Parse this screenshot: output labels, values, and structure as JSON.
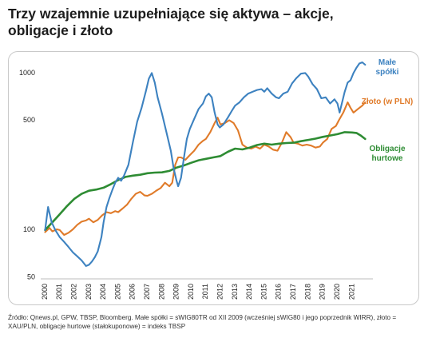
{
  "title_line1": "Trzy wzajemnie uzupełniające się aktywa – akcje,",
  "title_line2": "obligacje i złoto",
  "source": "Źródło: Qnews.pl, GPW, TBSP, Bloomberg. Małe spółki = sWIG80TR od XII 2009 (wcześniej sWIG80 i jego poprzednik WIRR), złoto = XAU/PLN, obligacje hurtowe (stałokuponowe) = indeks TBSP",
  "chart_data": {
    "type": "line",
    "y_scale": "log",
    "ylim": [
      50,
      1300
    ],
    "xlim": [
      1999.7,
      2022.1
    ],
    "y_ticks": [
      {
        "value": 50,
        "label": "50"
      },
      {
        "value": 100,
        "label": "100"
      },
      {
        "value": 500,
        "label": "500"
      },
      {
        "value": 1000,
        "label": "1000"
      }
    ],
    "x_ticks": [
      "2000",
      "2001",
      "2002",
      "2003",
      "2004",
      "2005",
      "2006",
      "2007",
      "2008",
      "2009",
      "2010",
      "2011",
      "2012",
      "2013",
      "2014",
      "2015",
      "2016",
      "2017",
      "2018",
      "2019",
      "2020",
      "2021"
    ],
    "grid": false,
    "series": [
      {
        "name": "Małe spółki",
        "label_line1": "Małe",
        "label_line2": "spółki",
        "color": "#3d82c0",
        "points": [
          [
            2000.0,
            100
          ],
          [
            2000.2,
            140
          ],
          [
            2000.45,
            112
          ],
          [
            2000.7,
            100
          ],
          [
            2001.0,
            90
          ],
          [
            2001.3,
            84
          ],
          [
            2001.6,
            78
          ],
          [
            2001.9,
            72
          ],
          [
            2002.2,
            68
          ],
          [
            2002.5,
            64
          ],
          [
            2002.8,
            59
          ],
          [
            2003.0,
            60
          ],
          [
            2003.2,
            63
          ],
          [
            2003.4,
            67
          ],
          [
            2003.6,
            73
          ],
          [
            2003.85,
            90
          ],
          [
            2004.0,
            112
          ],
          [
            2004.2,
            140
          ],
          [
            2004.4,
            160
          ],
          [
            2004.6,
            180
          ],
          [
            2004.8,
            200
          ],
          [
            2005.0,
            215
          ],
          [
            2005.2,
            206
          ],
          [
            2005.4,
            222
          ],
          [
            2005.7,
            260
          ],
          [
            2006.0,
            360
          ],
          [
            2006.3,
            490
          ],
          [
            2006.6,
            600
          ],
          [
            2006.9,
            770
          ],
          [
            2007.1,
            920
          ],
          [
            2007.3,
            1000
          ],
          [
            2007.5,
            870
          ],
          [
            2007.7,
            700
          ],
          [
            2008.0,
            550
          ],
          [
            2008.3,
            420
          ],
          [
            2008.6,
            320
          ],
          [
            2008.8,
            245
          ],
          [
            2009.0,
            205
          ],
          [
            2009.1,
            190
          ],
          [
            2009.3,
            215
          ],
          [
            2009.5,
            290
          ],
          [
            2009.7,
            380
          ],
          [
            2009.9,
            440
          ],
          [
            2010.2,
            510
          ],
          [
            2010.5,
            590
          ],
          [
            2010.8,
            640
          ],
          [
            2011.0,
            710
          ],
          [
            2011.2,
            740
          ],
          [
            2011.4,
            700
          ],
          [
            2011.6,
            560
          ],
          [
            2011.8,
            470
          ],
          [
            2011.95,
            450
          ],
          [
            2012.2,
            470
          ],
          [
            2012.5,
            520
          ],
          [
            2012.8,
            580
          ],
          [
            2013.0,
            620
          ],
          [
            2013.3,
            650
          ],
          [
            2013.6,
            700
          ],
          [
            2013.9,
            740
          ],
          [
            2014.2,
            760
          ],
          [
            2014.5,
            780
          ],
          [
            2014.8,
            790
          ],
          [
            2015.0,
            760
          ],
          [
            2015.2,
            800
          ],
          [
            2015.5,
            740
          ],
          [
            2015.8,
            700
          ],
          [
            2016.0,
            690
          ],
          [
            2016.3,
            740
          ],
          [
            2016.6,
            760
          ],
          [
            2016.9,
            860
          ],
          [
            2017.2,
            930
          ],
          [
            2017.5,
            990
          ],
          [
            2017.8,
            1000
          ],
          [
            2018.0,
            950
          ],
          [
            2018.3,
            850
          ],
          [
            2018.6,
            790
          ],
          [
            2018.9,
            690
          ],
          [
            2019.2,
            700
          ],
          [
            2019.5,
            640
          ],
          [
            2019.8,
            680
          ],
          [
            2020.0,
            640
          ],
          [
            2020.15,
            560
          ],
          [
            2020.3,
            640
          ],
          [
            2020.5,
            760
          ],
          [
            2020.7,
            870
          ],
          [
            2020.9,
            900
          ],
          [
            2021.1,
            1000
          ],
          [
            2021.3,
            1080
          ],
          [
            2021.5,
            1150
          ],
          [
            2021.7,
            1170
          ],
          [
            2021.9,
            1130
          ]
        ]
      },
      {
        "name": "Złoto (w PLN)",
        "color": "#e07b2a",
        "points": [
          [
            2000.0,
            97
          ],
          [
            2000.3,
            103
          ],
          [
            2000.5,
            98
          ],
          [
            2000.8,
            101
          ],
          [
            2001.0,
            100
          ],
          [
            2001.3,
            93
          ],
          [
            2001.6,
            96
          ],
          [
            2001.9,
            101
          ],
          [
            2002.2,
            108
          ],
          [
            2002.5,
            113
          ],
          [
            2002.8,
            115
          ],
          [
            2003.0,
            118
          ],
          [
            2003.3,
            112
          ],
          [
            2003.6,
            116
          ],
          [
            2003.9,
            124
          ],
          [
            2004.2,
            130
          ],
          [
            2004.5,
            128
          ],
          [
            2004.8,
            132
          ],
          [
            2005.0,
            130
          ],
          [
            2005.3,
            137
          ],
          [
            2005.6,
            145
          ],
          [
            2005.9,
            158
          ],
          [
            2006.2,
            170
          ],
          [
            2006.5,
            175
          ],
          [
            2006.8,
            166
          ],
          [
            2007.0,
            165
          ],
          [
            2007.3,
            170
          ],
          [
            2007.6,
            178
          ],
          [
            2007.9,
            185
          ],
          [
            2008.2,
            200
          ],
          [
            2008.5,
            190
          ],
          [
            2008.7,
            200
          ],
          [
            2008.9,
            260
          ],
          [
            2009.1,
            290
          ],
          [
            2009.3,
            290
          ],
          [
            2009.6,
            280
          ],
          [
            2009.9,
            300
          ],
          [
            2010.2,
            320
          ],
          [
            2010.5,
            350
          ],
          [
            2010.8,
            370
          ],
          [
            2011.0,
            380
          ],
          [
            2011.3,
            420
          ],
          [
            2011.6,
            480
          ],
          [
            2011.8,
            520
          ],
          [
            2012.0,
            470
          ],
          [
            2012.3,
            480
          ],
          [
            2012.6,
            500
          ],
          [
            2012.9,
            480
          ],
          [
            2013.2,
            430
          ],
          [
            2013.5,
            350
          ],
          [
            2013.8,
            335
          ],
          [
            2014.1,
            330
          ],
          [
            2014.4,
            340
          ],
          [
            2014.7,
            330
          ],
          [
            2015.0,
            350
          ],
          [
            2015.3,
            340
          ],
          [
            2015.6,
            325
          ],
          [
            2015.9,
            320
          ],
          [
            2016.2,
            360
          ],
          [
            2016.5,
            420
          ],
          [
            2016.8,
            390
          ],
          [
            2017.0,
            360
          ],
          [
            2017.3,
            355
          ],
          [
            2017.6,
            345
          ],
          [
            2017.9,
            350
          ],
          [
            2018.2,
            345
          ],
          [
            2018.5,
            335
          ],
          [
            2018.8,
            340
          ],
          [
            2019.0,
            360
          ],
          [
            2019.3,
            380
          ],
          [
            2019.6,
            440
          ],
          [
            2019.9,
            460
          ],
          [
            2020.1,
            500
          ],
          [
            2020.4,
            560
          ],
          [
            2020.7,
            650
          ],
          [
            2020.9,
            600
          ],
          [
            2021.1,
            560
          ],
          [
            2021.4,
            590
          ],
          [
            2021.7,
            620
          ],
          [
            2021.9,
            650
          ]
        ]
      },
      {
        "name": "Obligacje hurtowe",
        "label_line1": "Obligacje",
        "label_line2": "hurtowe",
        "color": "#2e8c33",
        "points": [
          [
            2000.0,
            100
          ],
          [
            2000.5,
            112
          ],
          [
            2001.0,
            126
          ],
          [
            2001.5,
            142
          ],
          [
            2002.0,
            158
          ],
          [
            2002.5,
            170
          ],
          [
            2003.0,
            178
          ],
          [
            2003.5,
            181
          ],
          [
            2004.0,
            186
          ],
          [
            2004.5,
            196
          ],
          [
            2005.0,
            208
          ],
          [
            2005.5,
            218
          ],
          [
            2006.0,
            222
          ],
          [
            2006.5,
            225
          ],
          [
            2007.0,
            230
          ],
          [
            2007.5,
            232
          ],
          [
            2008.0,
            233
          ],
          [
            2008.5,
            238
          ],
          [
            2009.0,
            250
          ],
          [
            2009.5,
            258
          ],
          [
            2010.0,
            268
          ],
          [
            2010.5,
            278
          ],
          [
            2011.0,
            284
          ],
          [
            2011.5,
            290
          ],
          [
            2012.0,
            296
          ],
          [
            2012.5,
            315
          ],
          [
            2013.0,
            330
          ],
          [
            2013.5,
            326
          ],
          [
            2014.0,
            335
          ],
          [
            2014.5,
            348
          ],
          [
            2015.0,
            355
          ],
          [
            2015.5,
            350
          ],
          [
            2016.0,
            355
          ],
          [
            2016.5,
            358
          ],
          [
            2017.0,
            360
          ],
          [
            2017.5,
            368
          ],
          [
            2018.0,
            375
          ],
          [
            2018.5,
            382
          ],
          [
            2019.0,
            392
          ],
          [
            2019.5,
            400
          ],
          [
            2020.0,
            408
          ],
          [
            2020.5,
            420
          ],
          [
            2021.0,
            418
          ],
          [
            2021.3,
            415
          ],
          [
            2021.6,
            400
          ],
          [
            2021.9,
            380
          ]
        ]
      }
    ]
  }
}
